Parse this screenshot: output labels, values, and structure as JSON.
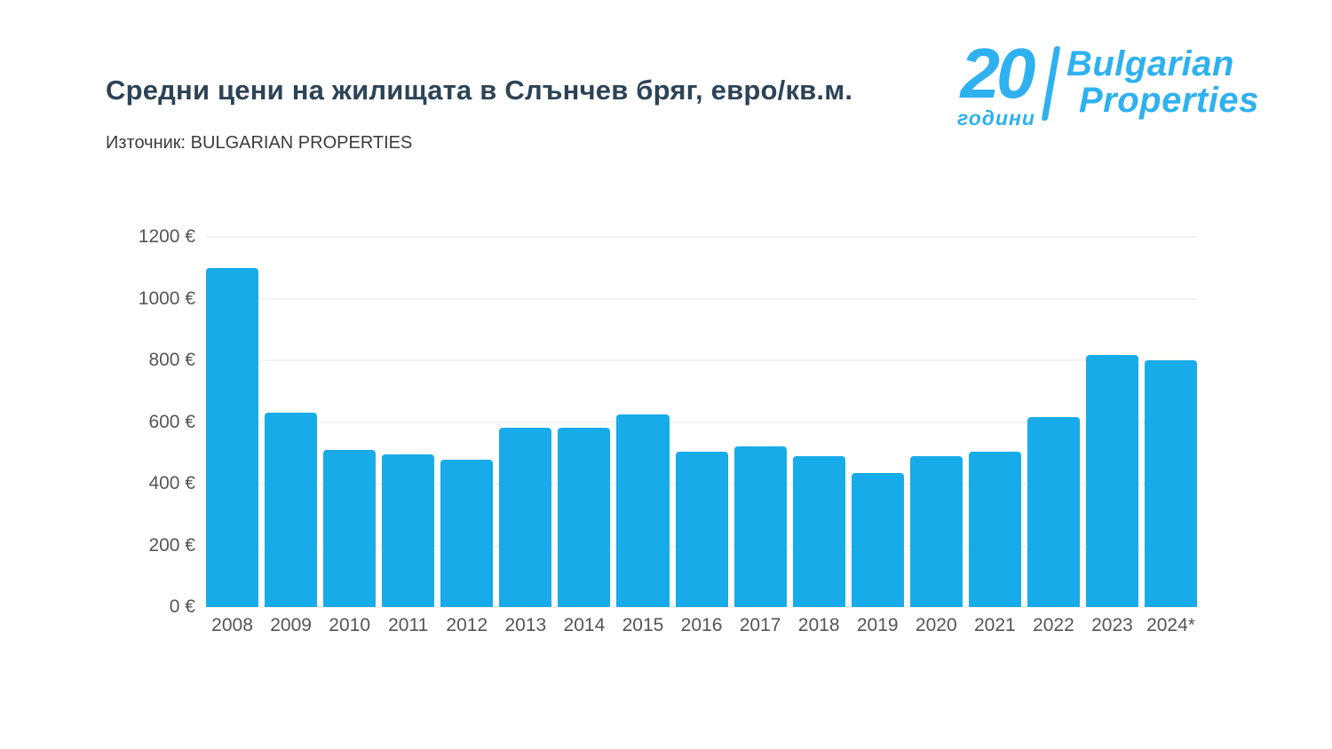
{
  "header": {
    "title": "Средни цени на жилищата в Слънчев бряг, евро/кв.м.",
    "source": "Източник: BULGARIAN PROPERTIES"
  },
  "logo": {
    "number": "20",
    "years": "години",
    "line1": "Bulgarian",
    "line2": "Properties",
    "color": "#2fb1ef"
  },
  "chart_data": {
    "type": "bar",
    "title": "Средни цени на жилищата в Слънчев бряг, евро/кв.м.",
    "source": "Източник: BULGARIAN PROPERTIES",
    "categories": [
      "2008",
      "2009",
      "2010",
      "2011",
      "2012",
      "2013",
      "2014",
      "2015",
      "2016",
      "2017",
      "2018",
      "2019",
      "2020",
      "2021",
      "2022",
      "2023",
      "2024*"
    ],
    "values": [
      1100,
      630,
      510,
      495,
      477,
      580,
      582,
      625,
      505,
      520,
      489,
      435,
      488,
      505,
      616,
      816,
      800
    ],
    "unit": "€/кв.м.",
    "bar_color": "#18abe9",
    "ylim": [
      0,
      1200
    ],
    "y_tick_values": [
      0,
      200,
      400,
      600,
      800,
      1000,
      1200
    ],
    "y_tick_labels": [
      "0 €",
      "200 €",
      "400 €",
      "600 €",
      "800 €",
      "1000 €",
      "1200 €"
    ],
    "grid": true,
    "legend": "none"
  }
}
